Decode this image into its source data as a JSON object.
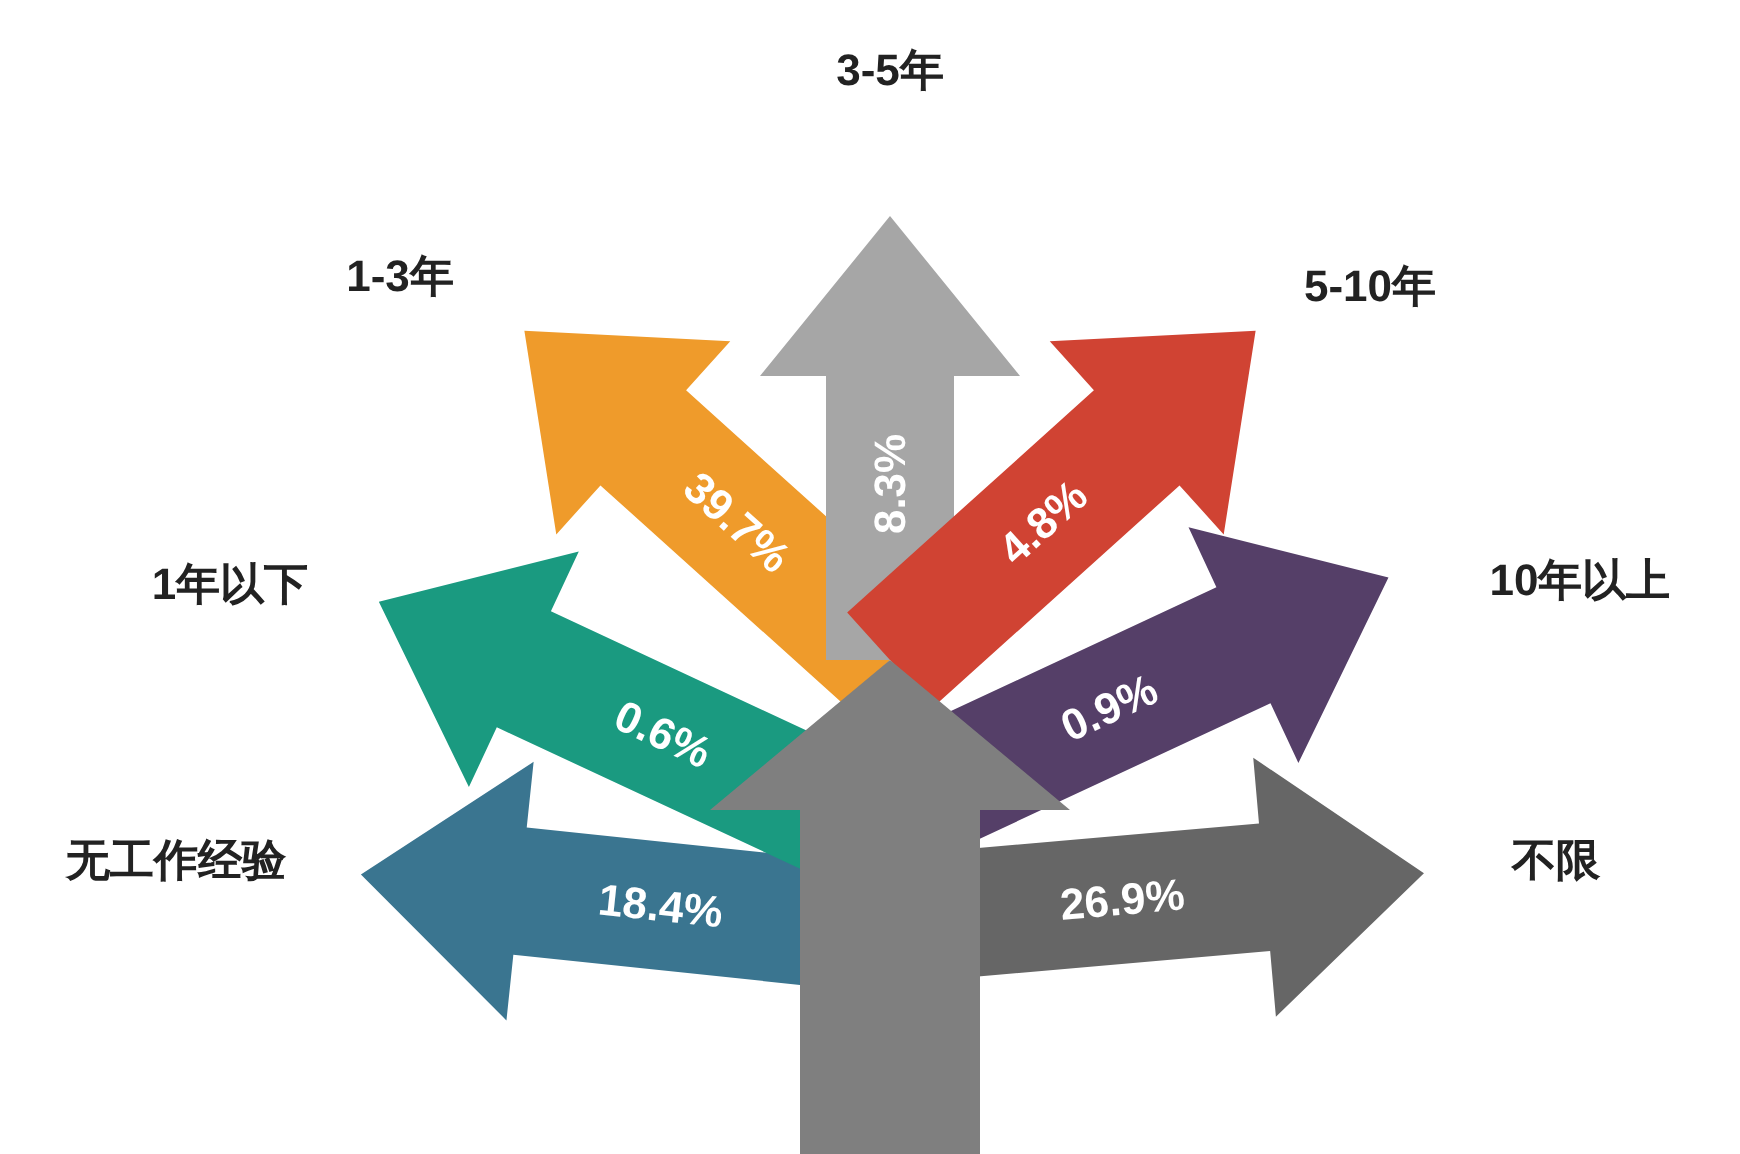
{
  "chart_data": {
    "type": "other",
    "categories": [
      "无工作经验",
      "1年以下",
      "1-3年",
      "3-5年",
      "5-10年",
      "10年以上",
      "不限"
    ],
    "values": [
      18.4,
      0.6,
      39.7,
      8.3,
      4.8,
      0.9,
      26.9
    ],
    "value_labels": [
      "18.4%",
      "0.6%",
      "39.7%",
      "8.3%",
      "4.8%",
      "0.9%",
      "26.9%"
    ],
    "colors": [
      "#3a7590",
      "#1a9a80",
      "#ef9b2b",
      "#a6a6a6",
      "#d04333",
      "#553f68",
      "#666666"
    ]
  }
}
